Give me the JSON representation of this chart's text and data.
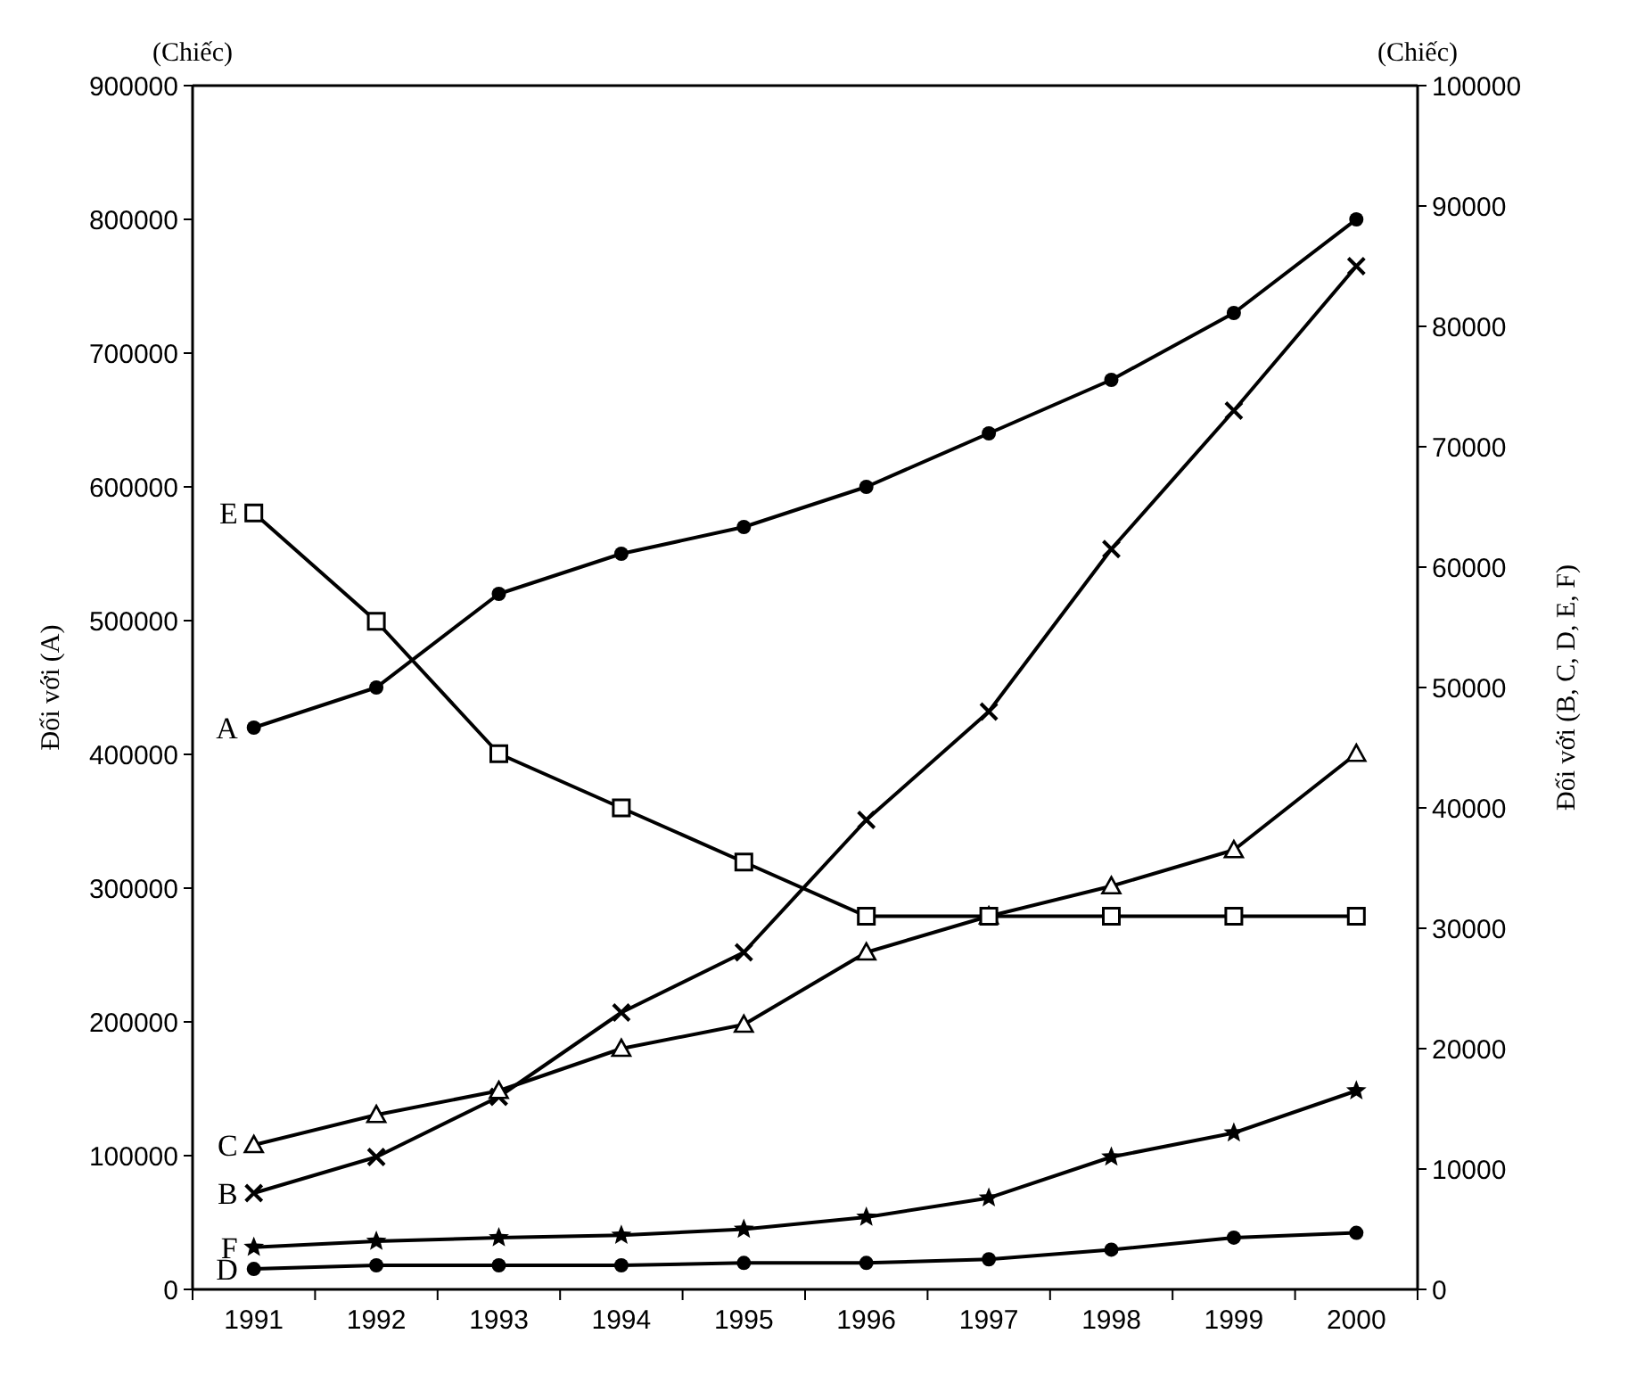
{
  "chart_data": {
    "type": "line",
    "categories": [
      "1991",
      "1992",
      "1993",
      "1994",
      "1995",
      "1996",
      "1997",
      "1998",
      "1999",
      "2000"
    ],
    "ylabel": "Đối với (A)",
    "y2label": "Đối với (B, C, D, E, F)",
    "annotations": [
      "(Chiếc)",
      "(Chiếc)"
    ],
    "ylim": [
      0,
      900000
    ],
    "yticks": [
      0,
      100000,
      200000,
      300000,
      400000,
      500000,
      600000,
      700000,
      800000,
      900000
    ],
    "y2lim": [
      0,
      100000
    ],
    "y2ticks": [
      0,
      10000,
      20000,
      30000,
      40000,
      50000,
      60000,
      70000,
      80000,
      90000,
      100000
    ],
    "grid": false,
    "line_style": "solid",
    "series": [
      {
        "name": "A",
        "color": "#000000",
        "marker": "circle",
        "values": [
          420000,
          450000,
          520000,
          550000,
          570000,
          600000,
          640000,
          680000,
          730000,
          800000
        ]
      },
      {
        "name": "B",
        "color": "#000000",
        "marker": "cross",
        "axis": "y2",
        "values": [
          8000,
          11000,
          16000,
          23000,
          28000,
          39000,
          48000,
          61500,
          73000,
          85000
        ]
      },
      {
        "name": "C",
        "color": "#000000",
        "marker": "triangle",
        "axis": "y2",
        "values": [
          12000,
          14500,
          16500,
          20000,
          22000,
          28000,
          31000,
          33500,
          36500,
          44500
        ]
      },
      {
        "name": "D",
        "color": "#000000",
        "marker": "circle",
        "axis": "y2",
        "values": [
          1700,
          2000,
          2000,
          2000,
          2200,
          2200,
          2500,
          3300,
          4300,
          4700
        ]
      },
      {
        "name": "E",
        "color": "#000000",
        "marker": "square",
        "axis": "y2",
        "values": [
          64500,
          55500,
          44500,
          40000,
          35500,
          31000,
          31000,
          31000,
          31000,
          31000
        ]
      },
      {
        "name": "F",
        "color": "#000000",
        "marker": "star",
        "axis": "y2",
        "values": [
          3500,
          4000,
          4300,
          4500,
          5000,
          6000,
          7600,
          11000,
          13000,
          16500
        ]
      }
    ]
  }
}
